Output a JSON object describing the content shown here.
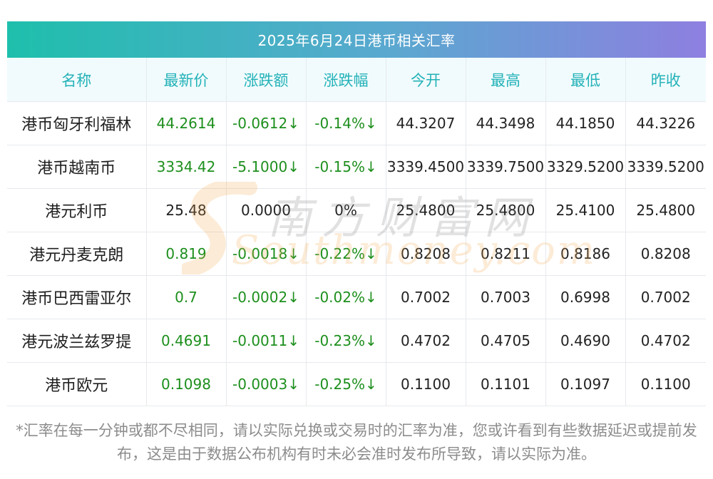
{
  "title": "2025年6月24日港币相关汇率",
  "headers": [
    "名称",
    "最新价",
    "涨跌额",
    "涨跌幅",
    "今开",
    "最高",
    "最低",
    "昨收"
  ],
  "rows": [
    {
      "name": "港币匈牙利福林",
      "latest": "44.2614",
      "change": "-0.0612↓",
      "change_pct": "-0.14%↓",
      "open": "44.3207",
      "high": "44.3498",
      "low": "44.1850",
      "prev_close": "44.3226",
      "trend": "down"
    },
    {
      "name": "港币越南币",
      "latest": "3334.42",
      "change": "-5.1000↓",
      "change_pct": "-0.15%↓",
      "open": "3339.4500",
      "high": "3339.7500",
      "low": "3329.5200",
      "prev_close": "3339.5200",
      "trend": "down"
    },
    {
      "name": "港元利币",
      "latest": "25.48",
      "change": "0.0000",
      "change_pct": "0%",
      "open": "25.4800",
      "high": "25.4800",
      "low": "25.4100",
      "prev_close": "25.4800",
      "trend": "flat"
    },
    {
      "name": "港元丹麦克朗",
      "latest": "0.819",
      "change": "-0.0018↓",
      "change_pct": "-0.22%↓",
      "open": "0.8208",
      "high": "0.8211",
      "low": "0.8186",
      "prev_close": "0.8208",
      "trend": "down"
    },
    {
      "name": "港币巴西雷亚尔",
      "latest": "0.7",
      "change": "-0.0002↓",
      "change_pct": "-0.02%↓",
      "open": "0.7002",
      "high": "0.7003",
      "low": "0.6998",
      "prev_close": "0.7002",
      "trend": "down"
    },
    {
      "name": "港元波兰兹罗提",
      "latest": "0.4691",
      "change": "-0.0011↓",
      "change_pct": "-0.23%↓",
      "open": "0.4702",
      "high": "0.4705",
      "low": "0.4690",
      "prev_close": "0.4702",
      "trend": "down"
    },
    {
      "name": "港币欧元",
      "latest": "0.1098",
      "change": "-0.0003↓",
      "change_pct": "-0.25%↓",
      "open": "0.1100",
      "high": "0.1101",
      "low": "0.1097",
      "prev_close": "0.1100",
      "trend": "down"
    }
  ],
  "watermark": {
    "cn": "南方财富网",
    "en": "Southmoney.com"
  },
  "note": "*汇率在每一分钟或都不尽相同，请以实际兑换或交易时的汇率为准，您或许看到有些数据延迟或提前发布，这是由于数据公布机构有时未必会准时发布所导致，请以实际为准。",
  "colors": {
    "change_down": "#1d8f1d",
    "header_text": "#23b2b8",
    "title_gradient_start": "#1ebfac",
    "title_gradient_end": "#8e7fe0"
  }
}
